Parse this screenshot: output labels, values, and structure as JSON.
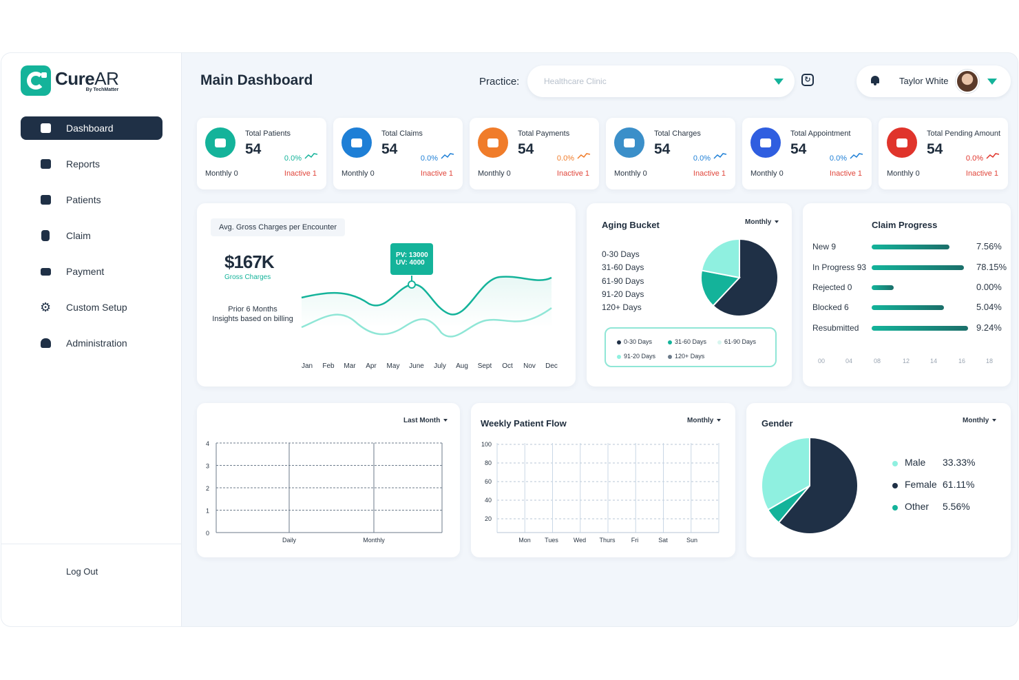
{
  "app": {
    "logo_name_bold": "Cure",
    "logo_name_light": "AR",
    "logo_sub": "By TechMatter"
  },
  "sidebar": {
    "items": [
      {
        "label": "Dashboard",
        "active": true
      },
      {
        "label": "Reports"
      },
      {
        "label": "Patients"
      },
      {
        "label": "Claim"
      },
      {
        "label": "Payment"
      },
      {
        "label": "Custom Setup"
      },
      {
        "label": "Administration"
      }
    ],
    "logout": "Log Out"
  },
  "header": {
    "title": "Main Dashboard",
    "practice_label": "Practice:",
    "practice_placeholder": "Healthcare Clinic",
    "user_name": "Taylor White"
  },
  "stats": [
    {
      "label": "Total Patients",
      "value": "54",
      "pct": "0.0%",
      "monthly": "Monthly 0",
      "inactive": "Inactive 1",
      "color": "#14b39a",
      "pct_color": "#14b39a"
    },
    {
      "label": "Total Claims",
      "value": "54",
      "pct": "0.0%",
      "monthly": "Monthly 0",
      "inactive": "Inactive 1",
      "color": "#1e7fd6",
      "pct_color": "#1e7fd6"
    },
    {
      "label": "Total Payments",
      "value": "54",
      "pct": "0.0%",
      "monthly": "Monthly 0",
      "inactive": "Inactive 1",
      "color": "#f07c2a",
      "pct_color": "#f07c2a"
    },
    {
      "label": "Total Charges",
      "value": "54",
      "pct": "0.0%",
      "monthly": "Monthly 0",
      "inactive": "Inactive 1",
      "color": "#3b8fc9",
      "pct_color": "#1e7fd6"
    },
    {
      "label": "Total Appointment",
      "value": "54",
      "pct": "0.0%",
      "monthly": "Monthly 0",
      "inactive": "Inactive 1",
      "color": "#2f5ee0",
      "pct_color": "#1e7fd6"
    },
    {
      "label": "Total Pending Amount",
      "value": "54",
      "pct": "0.0%",
      "monthly": "Monthly 0",
      "inactive": "Inactive 1",
      "color": "#e0342b",
      "pct_color": "#e0342b"
    }
  ],
  "gross": {
    "chip": "Avg. Gross Charges per Encounter",
    "value": "$167K",
    "value_label": "Gross Charges",
    "note_line1": "Prior 6 Months",
    "note_line2": "Insights based on billing",
    "tooltip_pv": "PV: 13000",
    "tooltip_uv": "UV: 4000",
    "months": [
      "Jan",
      "Feb",
      "Mar",
      "Apr",
      "May",
      "June",
      "July",
      "Aug",
      "Sept",
      "Oct",
      "Nov",
      "Dec"
    ]
  },
  "aging": {
    "title": "Aging Bucket",
    "dropdown": "Monthly",
    "list": [
      "0-30 Days",
      "31-60 Days",
      "61-90 Days",
      "91-20 Days",
      "120+ Days"
    ],
    "legend": [
      {
        "label": "0-30 Days",
        "color": "#1f3046"
      },
      {
        "label": "31-60 Days",
        "color": "#14b39a"
      },
      {
        "label": "61-90 Days",
        "color": "#d7f5ef"
      },
      {
        "label": "91-20 Days",
        "color": "#8ff0e0"
      },
      {
        "label": "120+ Days",
        "color": "#6b7a8a"
      }
    ],
    "pie": [
      {
        "label": "dark",
        "value": 62,
        "color": "#1f3046"
      },
      {
        "label": "teal",
        "value": 16,
        "color": "#14b39a"
      },
      {
        "label": "light",
        "value": 22,
        "color": "#8ff0e0"
      }
    ]
  },
  "claim_progress": {
    "title": "Claim Progress",
    "rows": [
      {
        "name": "New 9",
        "pct": "7.56%",
        "fill": 0.84
      },
      {
        "name": "In Progress 93",
        "pct": "78.15%",
        "fill": 0.99
      },
      {
        "name": "Rejected 0",
        "pct": "0.00%",
        "fill": 0.24
      },
      {
        "name": "Blocked 6",
        "pct": "5.04%",
        "fill": 0.78
      },
      {
        "name": "Resubmitted",
        "pct": "9.24%",
        "fill": 1.04
      }
    ],
    "ticks": [
      "00",
      "04",
      "08",
      "12",
      "14",
      "16",
      "18"
    ]
  },
  "bottom_left": {
    "dropdown": "Last Month",
    "y_ticks": [
      "4",
      "3",
      "2",
      "1",
      "0"
    ],
    "x_labels": [
      "Daily",
      "Monthly"
    ]
  },
  "weekly": {
    "title": "Weekly Patient Flow",
    "dropdown": "Monthly",
    "y_ticks": [
      "100",
      "80",
      "60",
      "40",
      "20"
    ],
    "days": [
      "Mon",
      "Tues",
      "Wed",
      "Thurs",
      "Fri",
      "Sat",
      "Sun"
    ]
  },
  "gender": {
    "title": "Gender",
    "dropdown": "Monthly",
    "items": [
      {
        "name": "Male",
        "pct": "33.33%",
        "value": 33.33,
        "color": "#8ff0e0"
      },
      {
        "name": "Female",
        "pct": "61.11%",
        "value": 61.11,
        "color": "#1f3046"
      },
      {
        "name": "Other",
        "pct": "5.56%",
        "value": 5.56,
        "color": "#14b39a"
      }
    ]
  }
}
